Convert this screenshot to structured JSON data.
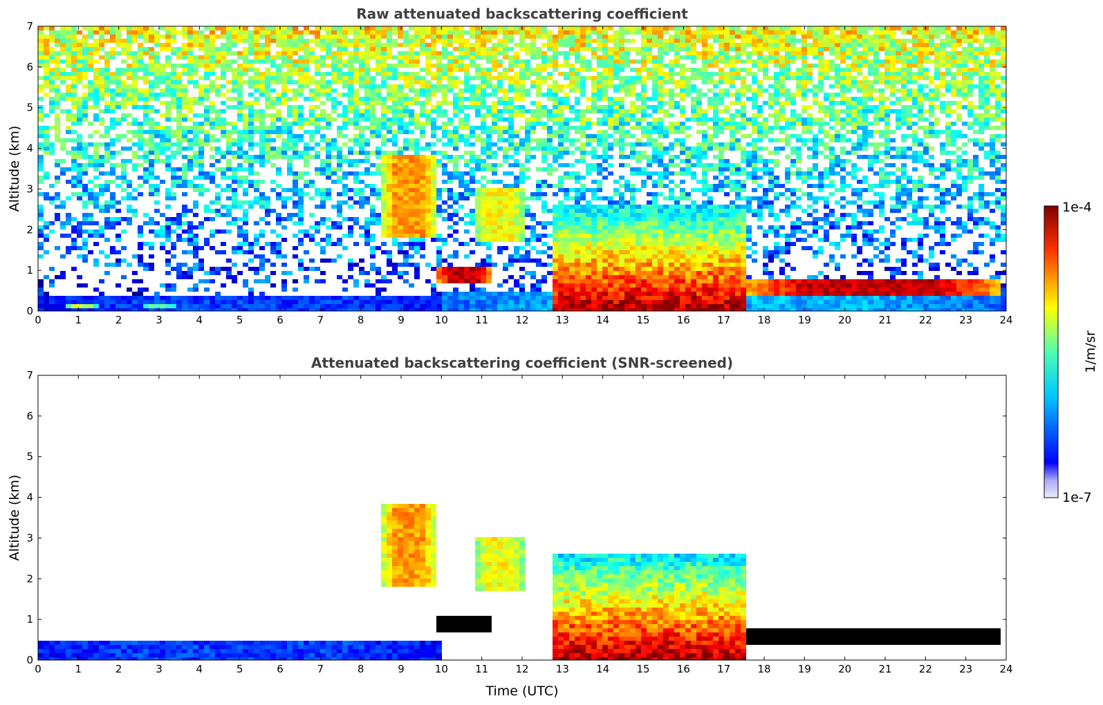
{
  "chart_data": [
    {
      "type": "heatmap",
      "title": "Raw attenuated backscattering coefficient",
      "xlabel": "",
      "ylabel": "Altitude (km)",
      "xlim": [
        0,
        24
      ],
      "ylim": [
        0,
        7
      ],
      "xticks": [
        "0",
        "1",
        "2",
        "3",
        "4",
        "5",
        "6",
        "7",
        "8",
        "9",
        "10",
        "11",
        "12",
        "13",
        "14",
        "15",
        "16",
        "17",
        "18",
        "19",
        "20",
        "21",
        "22",
        "23",
        "24"
      ],
      "yticks": [
        "0",
        "1",
        "2",
        "3",
        "4",
        "5",
        "6",
        "7"
      ],
      "screened": false,
      "features": [
        {
          "kind": "boundary_layer",
          "t": [
            0,
            10
          ],
          "alt": [
            0,
            0.4
          ],
          "level": 0.18
        },
        {
          "kind": "aerosol_layer",
          "t": [
            0.7,
            1.5
          ],
          "alt": [
            0.02,
            0.15
          ],
          "level": 0.55
        },
        {
          "kind": "aerosol_layer",
          "t": [
            2.6,
            3.4
          ],
          "alt": [
            0.05,
            0.2
          ],
          "level": 0.5
        },
        {
          "kind": "cirrus",
          "t": [
            8.5,
            9.9
          ],
          "alt": [
            1.8,
            3.8
          ],
          "level": 0.72
        },
        {
          "kind": "cirrus",
          "t": [
            10.8,
            12.1
          ],
          "alt": [
            1.7,
            3.0
          ],
          "level": 0.62
        },
        {
          "kind": "cloud_layer",
          "t": [
            9.9,
            11.2
          ],
          "alt": [
            0.7,
            1.05
          ],
          "level": 0.95
        },
        {
          "kind": "convective",
          "t": [
            12.8,
            17.5
          ],
          "alt": [
            0,
            2.6
          ],
          "level": 0.62
        },
        {
          "kind": "cloud_layer",
          "t": [
            17.5,
            23.9
          ],
          "alt": [
            0.4,
            0.75
          ],
          "level": 0.93
        },
        {
          "kind": "aerosol_layer",
          "t": [
            10,
            24
          ],
          "alt": [
            0,
            0.5
          ],
          "level": 0.3
        }
      ]
    },
    {
      "type": "heatmap",
      "title": "Attenuated backscattering coefficient (SNR-screened)",
      "xlabel": "Time (UTC)",
      "ylabel": "Altitude (km)",
      "xlim": [
        0,
        24
      ],
      "ylim": [
        0,
        7
      ],
      "xticks": [
        "0",
        "1",
        "2",
        "3",
        "4",
        "5",
        "6",
        "7",
        "8",
        "9",
        "10",
        "11",
        "12",
        "13",
        "14",
        "15",
        "16",
        "17",
        "18",
        "19",
        "20",
        "21",
        "22",
        "23",
        "24"
      ],
      "yticks": [
        "0",
        "1",
        "2",
        "3",
        "4",
        "5",
        "6",
        "7"
      ],
      "screened": true,
      "features": [
        {
          "kind": "boundary_layer",
          "t": [
            0,
            10
          ],
          "alt": [
            0,
            0.45
          ],
          "level": 0.18
        },
        {
          "kind": "cirrus",
          "t": [
            8.5,
            9.9
          ],
          "alt": [
            1.8,
            3.8
          ],
          "level": 0.72
        },
        {
          "kind": "cirrus",
          "t": [
            10.8,
            12.1
          ],
          "alt": [
            1.7,
            3.0
          ],
          "level": 0.62
        },
        {
          "kind": "cloud_layer",
          "t": [
            9.9,
            11.2
          ],
          "alt": [
            0.7,
            1.05
          ],
          "level": 1.0
        },
        {
          "kind": "convective",
          "t": [
            12.8,
            17.5
          ],
          "alt": [
            0,
            2.6
          ],
          "level": 0.62
        },
        {
          "kind": "cloud_layer",
          "t": [
            17.5,
            23.9
          ],
          "alt": [
            0.4,
            0.75
          ],
          "level": 1.0
        }
      ]
    }
  ],
  "colorbar": {
    "label": "1/m/sr",
    "max_label": "1e-4",
    "min_label": "1e-7",
    "colormap": "jet",
    "scale": "log"
  }
}
